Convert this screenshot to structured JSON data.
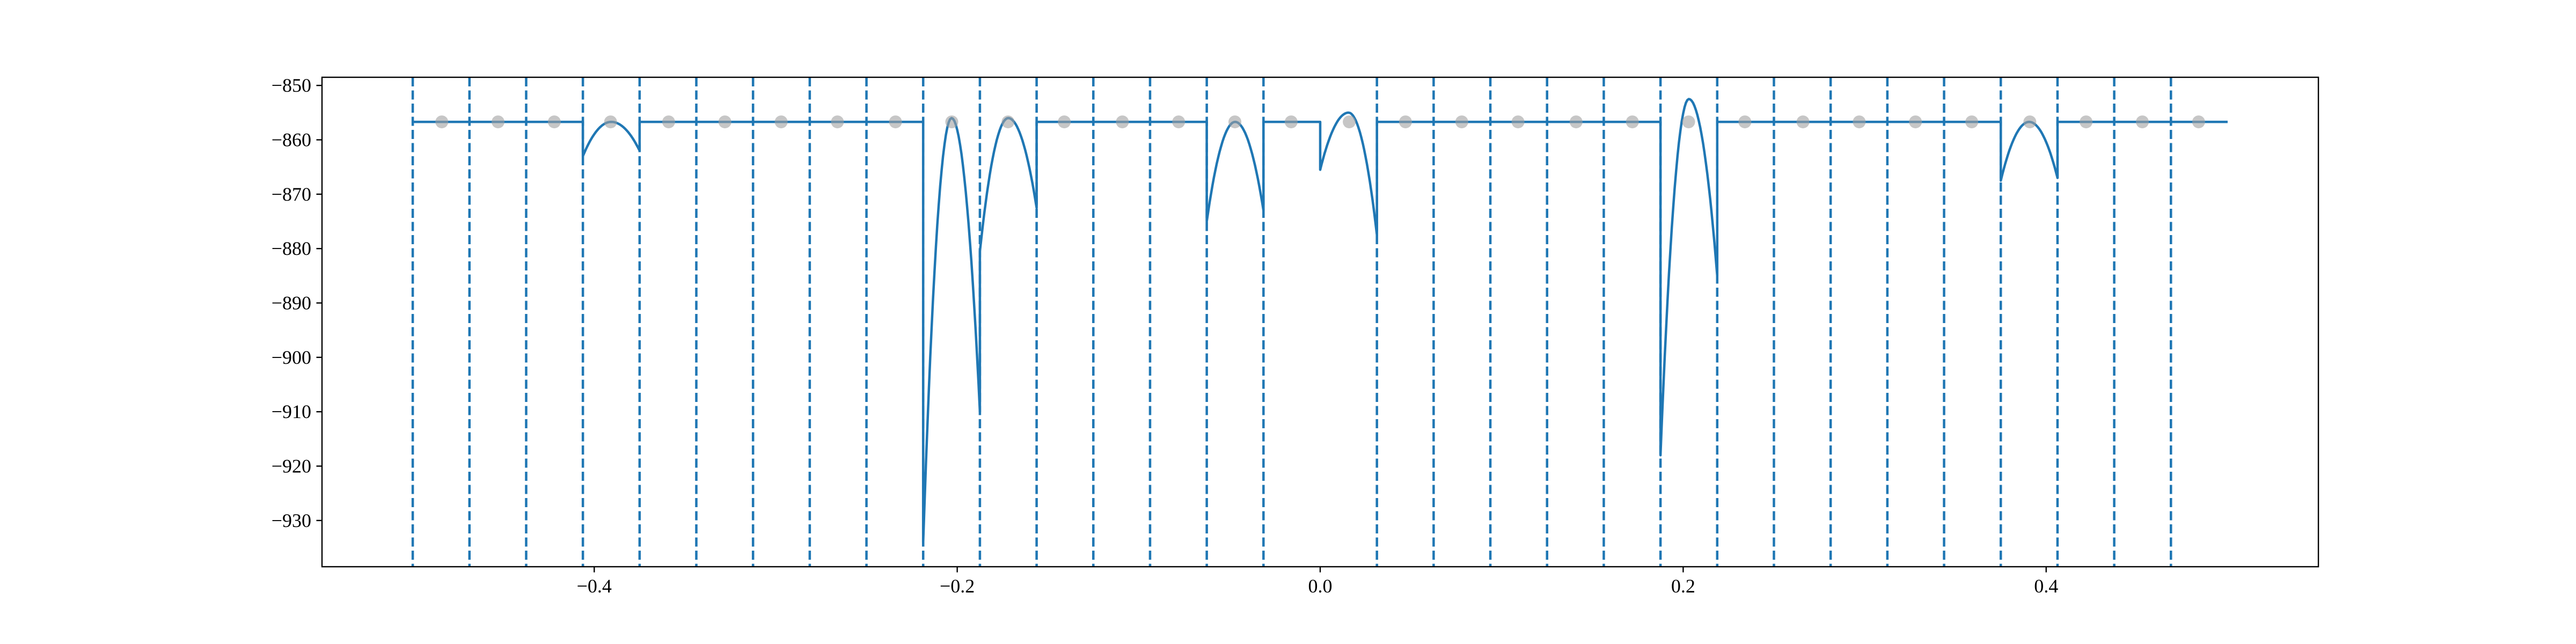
{
  "chart_data": {
    "type": "line",
    "title": "",
    "xlabel": "",
    "ylabel": "",
    "xlim": [
      -0.55,
      0.55
    ],
    "ylim": [
      -938.5,
      -848.5
    ],
    "x_ticks": [
      -0.4,
      -0.2,
      0.0,
      0.2,
      0.4
    ],
    "x_tick_labels": [
      "−0.4",
      "−0.2",
      "0.0",
      "0.2",
      "0.4"
    ],
    "y_ticks": [
      -850,
      -860,
      -870,
      -880,
      -890,
      -900,
      -910,
      -920,
      -930
    ],
    "y_tick_labels": [
      "−850",
      "−860",
      "−870",
      "−880",
      "−890",
      "−900",
      "−910",
      "−920",
      "−930"
    ],
    "grid": false,
    "legend": "none",
    "baseline": -856.7,
    "boundaries": [
      -0.5,
      -0.46875,
      -0.4375,
      -0.40625,
      -0.375,
      -0.34375,
      -0.3125,
      -0.28125,
      -0.25,
      -0.21875,
      -0.1875,
      -0.15625,
      -0.125,
      -0.09375,
      -0.0625,
      -0.03125,
      0.0,
      0.03125,
      0.0625,
      0.09375,
      0.125,
      0.15625,
      0.1875,
      0.21875,
      0.25,
      0.28125,
      0.3125,
      0.34375,
      0.375,
      0.40625,
      0.4375,
      0.46875,
      0.5
    ],
    "dashed_boundaries": [
      -0.5,
      -0.46875,
      -0.4375,
      -0.40625,
      -0.375,
      -0.34375,
      -0.3125,
      -0.28125,
      -0.25,
      -0.21875,
      -0.1875,
      -0.15625,
      -0.125,
      -0.09375,
      -0.0625,
      -0.03125,
      0.03125,
      0.0625,
      0.09375,
      0.125,
      0.15625,
      0.1875,
      0.21875,
      0.25,
      0.28125,
      0.3125,
      0.34375,
      0.375,
      0.40625,
      0.4375,
      0.46875
    ],
    "segments": [
      {
        "x0": -0.40625,
        "x1": -0.375,
        "left": -863.0,
        "peak": -856.7,
        "right": -862.0
      },
      {
        "x0": -0.21875,
        "x1": -0.1875,
        "left": -934.0,
        "peak": -856.0,
        "right": -910.0
      },
      {
        "x0": -0.1875,
        "x1": -0.15625,
        "left": -880.5,
        "peak": -856.0,
        "right": -872.5
      },
      {
        "x0": -0.0625,
        "x1": -0.03125,
        "left": -875.0,
        "peak": -856.7,
        "right": -873.0
      },
      {
        "x0": 0.0,
        "x1": 0.03125,
        "left": -865.5,
        "peak": -855.0,
        "right": -877.5
      },
      {
        "x0": 0.1875,
        "x1": 0.21875,
        "left": -918.0,
        "peak": -852.5,
        "right": -885.0
      },
      {
        "x0": 0.375,
        "x1": 0.40625,
        "left": -867.5,
        "peak": -856.7,
        "right": -867.0
      }
    ],
    "markers": {
      "x": [
        -0.484,
        -0.453,
        -0.422,
        -0.391,
        -0.359,
        -0.328,
        -0.297,
        -0.266,
        -0.234,
        -0.203,
        -0.172,
        -0.141,
        -0.109,
        -0.078,
        -0.047,
        -0.016,
        0.016,
        0.047,
        0.078,
        0.109,
        0.141,
        0.172,
        0.203,
        0.234,
        0.266,
        0.297,
        0.328,
        0.359,
        0.391,
        0.422,
        0.453,
        0.484
      ],
      "y": -856.7
    },
    "line_color": "#1f77b4",
    "marker_color": "#a0a0a0"
  }
}
